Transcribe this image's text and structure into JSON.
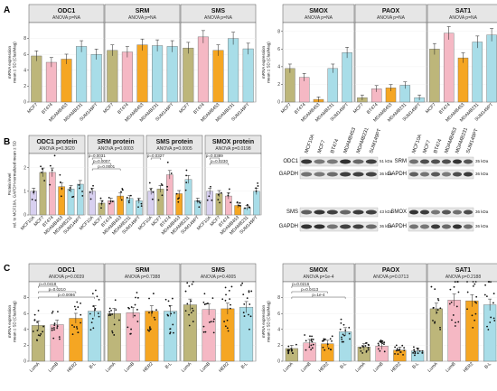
{
  "colors": {
    "MCF7": "#bdb67a",
    "BT474": "#f5b8c4",
    "MDAMB453": "#f5a623",
    "MDAMB231": "#a8dde8",
    "SUM149PT": "#a8dde8",
    "MCF10A": "#d8d0f0",
    "LumA": "#bdb67a",
    "LumB": "#f5b8c4",
    "HER2": "#f5a623",
    "B-L": "#a8dde8",
    "strip": "#e6e6e6",
    "panel_border": "#555555"
  },
  "panel_letters": [
    "A",
    "B",
    "C"
  ],
  "chart_data": [
    {
      "id": "A_left",
      "type": "bar",
      "ylabel": "mRNA expression\nmean ± SD (ClaslMag)",
      "ylim": [
        0,
        10
      ],
      "yticks": [
        0,
        2,
        4,
        6,
        8
      ],
      "categories": [
        "MCF7",
        "BT474",
        "MDAMB453",
        "MDAMB231",
        "SUM149PT"
      ],
      "facets": [
        {
          "title": "ODC1",
          "subtitle": "ANOVA p=NA",
          "values": [
            5.8,
            5.0,
            5.4,
            7.0,
            6.0
          ]
        },
        {
          "title": "SRM",
          "subtitle": "ANOVA p=NA",
          "values": [
            6.5,
            6.3,
            7.2,
            7.1,
            7.0
          ]
        },
        {
          "title": "SMS",
          "subtitle": "ANOVA p=NA",
          "values": [
            6.8,
            8.2,
            6.5,
            8.0,
            6.7
          ]
        }
      ]
    },
    {
      "id": "A_right",
      "type": "bar",
      "ylabel": "mRNA expression\nmean ± SD (ClaslMag)",
      "ylim": [
        0,
        9
      ],
      "yticks": [
        0,
        2,
        4,
        6,
        8
      ],
      "categories": [
        "MCF7",
        "BT474",
        "MDAMB453",
        "MDAMB231",
        "SUM149PT"
      ],
      "facets": [
        {
          "title": "SMOX",
          "subtitle": "ANOVA p=NA",
          "values": [
            3.8,
            2.8,
            0.3,
            3.8,
            5.6
          ]
        },
        {
          "title": "PAOX",
          "subtitle": "ANOVA p=NA",
          "values": [
            0.5,
            1.5,
            1.6,
            1.9,
            0.5
          ]
        },
        {
          "title": "SAT1",
          "subtitle": "ANOVA p=NA",
          "values": [
            6.0,
            7.8,
            5.0,
            6.8,
            7.6
          ]
        }
      ]
    },
    {
      "id": "B",
      "type": "bar",
      "ylabel": "Protein level\nrel. to MCF10A, GAPDH-normalized mean ± SD",
      "ylim": [
        0,
        2.6
      ],
      "yticks": [
        0,
        1,
        2
      ],
      "categories": [
        "MCF10A",
        "MCF7",
        "BT474",
        "MDAMB453",
        "MDAMB231",
        "SUM149PT"
      ],
      "facets": [
        {
          "title": "ODC1 protein",
          "subtitle": "ANOVA p=0.3620",
          "values": [
            1.0,
            1.8,
            1.8,
            1.2,
            1.1,
            1.3
          ],
          "pvalues": []
        },
        {
          "title": "SRM protein",
          "subtitle": "ANOVA p=0.0003",
          "values": [
            1.0,
            0.5,
            0.6,
            0.8,
            0.7,
            0.6
          ],
          "pvalues": [
            "p=0.0031",
            "p=0.0007",
            "p=0.0001"
          ]
        },
        {
          "title": "SMS protein",
          "subtitle": "ANOVA p=0.0005",
          "values": [
            1.0,
            1.1,
            1.7,
            0.9,
            1.5,
            0.6
          ],
          "pvalues": [
            "p=0.0327"
          ]
        },
        {
          "title": "SMOX protein",
          "subtitle": "ANOVA p=0.0198",
          "values": [
            1.0,
            0.9,
            0.8,
            0.4,
            0.3,
            1.0
          ],
          "pvalues": [
            "p=0.0389",
            "p=0.0230"
          ]
        }
      ]
    },
    {
      "id": "C_left",
      "type": "bar",
      "ylabel": "mRNA expression\nmean ± SD (ClaslMag)",
      "ylim": [
        0,
        10
      ],
      "yticks": [
        0,
        2,
        4,
        6,
        8
      ],
      "categories": [
        "LumA",
        "LumB",
        "HER2",
        "B-L"
      ],
      "facets": [
        {
          "title": "ODC1",
          "subtitle": "ANOVA p=0.0039",
          "values": [
            4.5,
            4.6,
            5.4,
            6.3
          ],
          "pvalues": [
            "p=0.0418",
            "p=0.0210",
            "p=0.0086"
          ]
        },
        {
          "title": "SRM",
          "subtitle": "ANOVA p=0.7388",
          "values": [
            6.0,
            6.1,
            6.3,
            6.3
          ],
          "pvalues": []
        },
        {
          "title": "SMS",
          "subtitle": "ANOVA p=0.4005",
          "values": [
            7.1,
            6.5,
            6.6,
            6.8
          ],
          "pvalues": []
        }
      ]
    },
    {
      "id": "C_right",
      "type": "bar",
      "ylabel": "mRNA expression\nmean ± SD (ClaslMag)",
      "ylim": [
        0,
        10
      ],
      "yticks": [
        0,
        2,
        4,
        6,
        8
      ],
      "categories": [
        "LumA",
        "LumB",
        "HER2",
        "B-L"
      ],
      "facets": [
        {
          "title": "SMOX",
          "subtitle": "ANOVA p=1e-4",
          "values": [
            1.6,
            2.3,
            2.2,
            3.7
          ],
          "pvalues": [
            "p=0.0216",
            "p=0.0413",
            "p=1e-4"
          ]
        },
        {
          "title": "PAOX",
          "subtitle": "ANOVA p=0.0713",
          "values": [
            1.8,
            1.9,
            1.4,
            1.3
          ],
          "pvalues": []
        },
        {
          "title": "SAT1",
          "subtitle": "ANOVA p=0.2188",
          "values": [
            6.6,
            7.7,
            7.6,
            7.1
          ],
          "pvalues": []
        }
      ]
    }
  ],
  "blots": [
    {
      "id": "blot1",
      "lanes": [
        "MCF10A",
        "MCF7",
        "BT474",
        "MDAMB453",
        "MDAMB231",
        "SUM149PT"
      ],
      "rows": [
        {
          "label": "ODC1",
          "kda": "51 kDa"
        },
        {
          "label": "GAPDH",
          "kda": "36 kDa"
        },
        {
          "label": "SMS",
          "kda": "43 kDa"
        },
        {
          "label": "GAPDH",
          "kda": "36 kDa"
        }
      ]
    },
    {
      "id": "blot2",
      "lanes": [
        "MCF10A",
        "MCF7",
        "BT474",
        "MDAMB453",
        "MDAMB231",
        "SUM149PT"
      ],
      "rows": [
        {
          "label": "SRM",
          "kda": "35 kDa"
        },
        {
          "label": "GAPDH",
          "kda": "36 kDa"
        },
        {
          "label": "SMOX",
          "kda": "36 kDa"
        },
        {
          "label": "GAPDH",
          "kda": "36 kDa"
        }
      ]
    }
  ]
}
